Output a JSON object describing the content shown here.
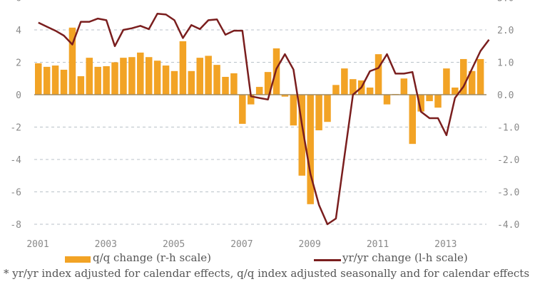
{
  "chart_data": {
    "type": "bar+line",
    "title": "",
    "xlabel": "",
    "ylabel_left": "yr/yr change",
    "ylabel_right": "q/q change",
    "x_ticks": [
      "2001",
      "2003",
      "2005",
      "2007",
      "2009",
      "2011",
      "2013"
    ],
    "left_axis": {
      "ticks": [
        "6",
        "4",
        "2",
        "0",
        "-2",
        "-4",
        "-6",
        "-8"
      ],
      "range": [
        -8,
        6
      ]
    },
    "right_axis": {
      "ticks": [
        "3.0",
        "2.0",
        "1.0",
        "0.0",
        "-1.0",
        "-2.0",
        "-3.0",
        "-4.0"
      ],
      "range": [
        -4,
        3
      ]
    },
    "grid": true,
    "start_period": "2001 Q1",
    "frequency": "quarterly",
    "series": [
      {
        "name": "q/q change (r-h scale)",
        "kind": "bar",
        "axis": "right",
        "color": "#f2a325",
        "values": [
          0.97,
          0.86,
          0.9,
          0.77,
          2.07,
          0.57,
          1.14,
          0.86,
          0.88,
          1.0,
          1.14,
          1.16,
          1.3,
          1.16,
          1.05,
          0.9,
          0.73,
          1.65,
          0.73,
          1.14,
          1.2,
          0.92,
          0.55,
          0.66,
          -0.9,
          -0.3,
          0.24,
          0.7,
          1.43,
          -0.06,
          -0.95,
          -2.5,
          -3.38,
          -1.1,
          -0.84,
          0.3,
          0.81,
          0.48,
          0.44,
          0.22,
          1.25,
          -0.3,
          0.02,
          0.5,
          -1.52,
          -0.52,
          -0.2,
          -0.4,
          0.81,
          0.22,
          1.1,
          0.73,
          1.1
        ]
      },
      {
        "name": "yr/yr change (l-h scale)",
        "kind": "line",
        "axis": "left",
        "color": "#7a1e1e",
        "values": [
          4.45,
          4.2,
          3.95,
          3.65,
          3.1,
          4.5,
          4.5,
          4.7,
          4.6,
          3.0,
          4.0,
          4.1,
          4.25,
          4.05,
          5.0,
          4.95,
          4.6,
          3.5,
          4.3,
          4.05,
          4.6,
          4.65,
          3.7,
          3.95,
          3.95,
          -0.1,
          -0.2,
          -0.3,
          1.6,
          2.5,
          1.55,
          -1.85,
          -4.9,
          -6.8,
          -8.0,
          -7.65,
          -3.8,
          0.0,
          0.45,
          1.45,
          1.65,
          2.5,
          1.3,
          1.3,
          1.4,
          -1.05,
          -1.45,
          -1.45,
          -2.5,
          -0.2,
          0.5,
          1.6,
          2.7,
          3.4
        ]
      }
    ],
    "legend": [
      {
        "label": "q/q change (r-h scale)",
        "kind": "bar"
      },
      {
        "label": "yr/yr change (l-h scale)",
        "kind": "line"
      }
    ],
    "legend_position": "bottom",
    "footnote": "* yr/yr index adjusted for calendar effects, q/q index adjusted seasonally and for calendar effects"
  }
}
